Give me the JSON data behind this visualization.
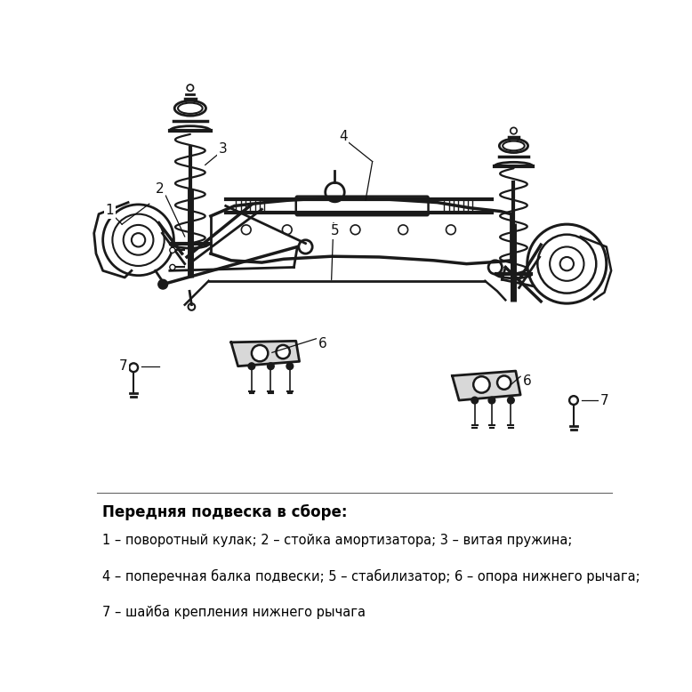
{
  "caption_bold": "Передняя подвеска в сборе:",
  "caption_lines": [
    "1 – поворотный кулак; 2 – стойка амортизатора; 3 – витая пружина;",
    "4 – поперечная балка подвески; 5 – стабилизатор; 6 – опора нижнего рычага;",
    "7 – шайба крепления нижнего рычага"
  ],
  "bg_color": "#ffffff",
  "text_color": "#000000",
  "fig_width": 7.78,
  "fig_height": 7.78,
  "dpi": 100
}
